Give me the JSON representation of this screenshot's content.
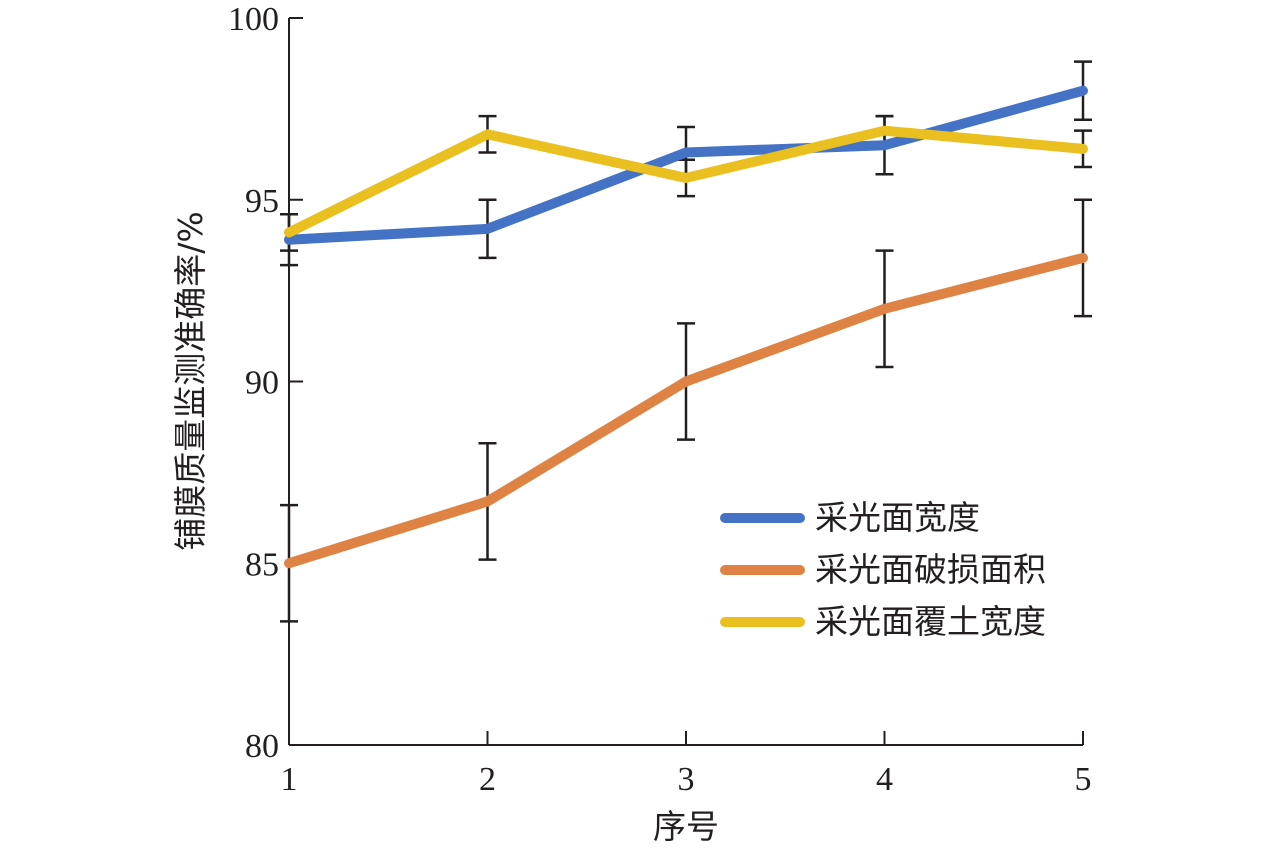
{
  "chart_data": {
    "type": "line",
    "title": "",
    "xlabel": "序号",
    "ylabel": "铺膜质量监测准确率/%",
    "x": [
      1,
      2,
      3,
      4,
      5
    ],
    "xlim": [
      1,
      5
    ],
    "ylim": [
      80,
      100
    ],
    "x_ticks": [
      "1",
      "2",
      "3",
      "4",
      "5"
    ],
    "y_ticks": [
      "80",
      "85",
      "90",
      "95",
      "100"
    ],
    "grid": false,
    "legend_position": "center-right",
    "series": [
      {
        "name": "采光面宽度",
        "color": "#4472c4",
        "values": [
          93.9,
          94.2,
          96.3,
          96.5,
          98.0
        ],
        "error": [
          0.7,
          0.8,
          0.7,
          0.8,
          0.8
        ]
      },
      {
        "name": "采光面破损面积",
        "color": "#de8344",
        "values": [
          85.0,
          86.7,
          90.0,
          92.0,
          93.4
        ],
        "error": [
          1.6,
          1.6,
          1.6,
          1.6,
          1.6
        ]
      },
      {
        "name": "采光面覆土宽度",
        "color": "#eac020",
        "values": [
          94.1,
          96.8,
          95.6,
          96.9,
          96.4
        ],
        "error": [
          0.5,
          0.5,
          0.5,
          0.4,
          0.5
        ]
      }
    ]
  }
}
